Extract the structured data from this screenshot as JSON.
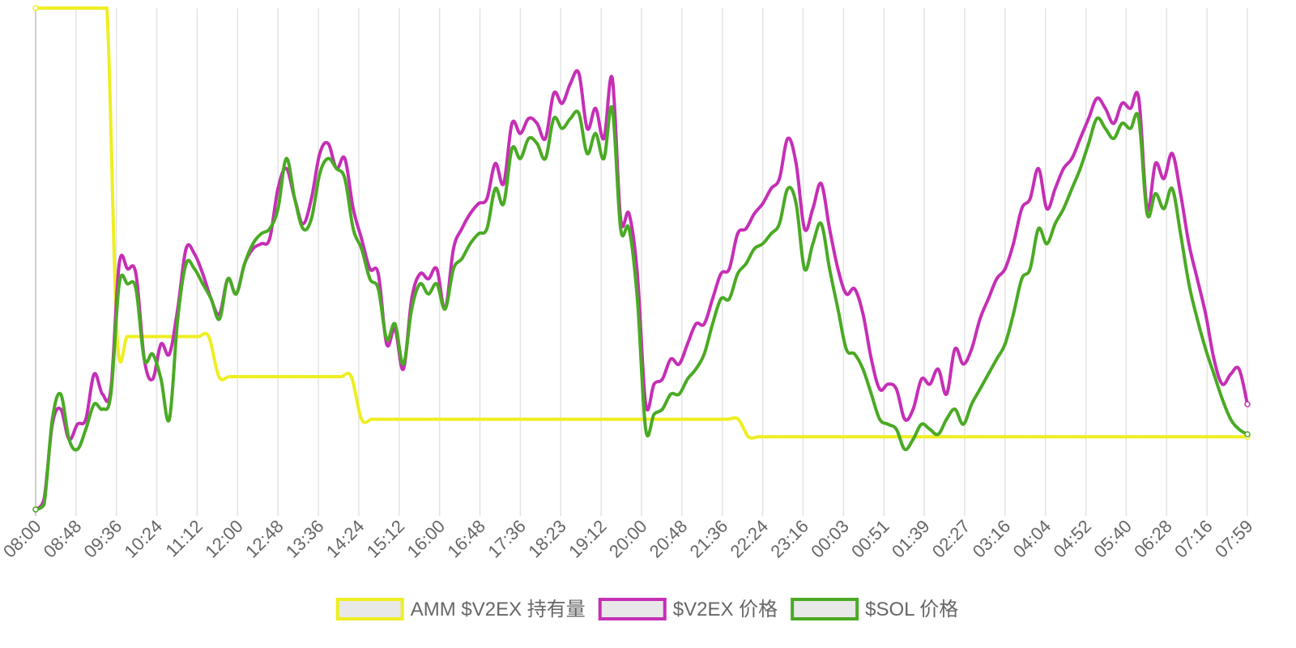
{
  "chart_data": {
    "type": "line",
    "title": "",
    "xlabel": "",
    "ylabel": "",
    "grid": true,
    "legend_position": "bottom-center",
    "x_tick_labels": [
      "08:00",
      "08:48",
      "09:36",
      "10:24",
      "11:12",
      "12:00",
      "12:48",
      "13:36",
      "14:24",
      "15:12",
      "16:00",
      "16:48",
      "17:36",
      "18:23",
      "19:12",
      "20:00",
      "20:48",
      "21:36",
      "22:24",
      "23:16",
      "00:03",
      "00:51",
      "01:39",
      "02:27",
      "03:16",
      "04:04",
      "04:52",
      "05:40",
      "06:28",
      "07:16",
      "07:59"
    ],
    "ylim": [
      0,
      100
    ],
    "series": [
      {
        "name": "AMM $V2EX 持有量",
        "color": "#eeee22",
        "values": [
          100,
          100,
          100,
          100,
          100,
          100,
          100,
          100,
          34.5,
          34.5,
          34.5,
          34.5,
          34.5,
          34.5,
          34.5,
          34.5,
          34.5,
          34.5,
          26.5,
          26.5,
          26.5,
          26.5,
          26.5,
          26.5,
          26.5,
          26.5,
          26.5,
          26.5,
          26.5,
          26.5,
          26.5,
          26.5,
          18,
          18,
          18,
          18,
          18,
          18,
          18,
          18,
          18,
          18,
          18,
          18,
          18,
          18,
          18,
          18,
          18,
          18,
          18,
          18,
          18,
          18,
          18,
          18,
          18,
          18,
          18,
          18,
          18,
          18,
          18,
          18,
          18,
          18,
          18,
          18,
          18,
          18,
          14.5,
          14.5,
          14.5,
          14.5,
          14.5,
          14.5,
          14.5,
          14.5,
          14.5,
          14.5,
          14.5,
          14.5,
          14.5,
          14.5,
          14.5,
          14.5,
          14.5,
          14.5,
          14.5,
          14.5,
          14.5,
          14.5,
          14.5,
          14.5,
          14.5,
          14.5,
          14.5,
          14.5,
          14.5,
          14.5,
          14.5,
          14.5,
          14.5,
          14.5,
          14.5,
          14.5,
          14.5,
          14.5,
          14.5,
          14.5,
          14.5,
          14.5,
          14.5,
          14.5,
          14.5,
          14.5,
          14.5,
          14.5,
          14.5,
          14.5
        ]
      },
      {
        "name": "$V2EX 价格",
        "color": "#c52fb5",
        "values": [
          0,
          2,
          17,
          20,
          14,
          17,
          18,
          27,
          23,
          24,
          49,
          48,
          47,
          30,
          26,
          33,
          31,
          40,
          52,
          51,
          47,
          42,
          39,
          46,
          43,
          49,
          52,
          53,
          54,
          64,
          68,
          62,
          57,
          62,
          71,
          73,
          68,
          70,
          60,
          54,
          48,
          47,
          33,
          36,
          28,
          42,
          47,
          46,
          48,
          40,
          52,
          56,
          59,
          61,
          62,
          69,
          65,
          77,
          75,
          78,
          77,
          74,
          83,
          81,
          85,
          87,
          76,
          80,
          74,
          86,
          58,
          59,
          47,
          21,
          25,
          26,
          30,
          29,
          33,
          37,
          37,
          42,
          47,
          48,
          55,
          56,
          59,
          61,
          64,
          66,
          74,
          69,
          56,
          60,
          65,
          56,
          48,
          43,
          44,
          39,
          30,
          24,
          25,
          24,
          18,
          20,
          26,
          25,
          28,
          23,
          32,
          29,
          32,
          38,
          42,
          46,
          48,
          53,
          60,
          62,
          68,
          60,
          64,
          68,
          70,
          74,
          78,
          82,
          80,
          77,
          81,
          80,
          82,
          60,
          69,
          66,
          71,
          63,
          53,
          46,
          39,
          30,
          25,
          27,
          28,
          21
        ]
      },
      {
        "name": "$SOL 价格",
        "color": "#4aaa24",
        "values": [
          0,
          1,
          18,
          23,
          14,
          12,
          16,
          21,
          20,
          23,
          45,
          45,
          44,
          30,
          31,
          26,
          18,
          38,
          49,
          48,
          45,
          42,
          38,
          46,
          43,
          49,
          53,
          55,
          56,
          60,
          70,
          62,
          56,
          58,
          67,
          70,
          68,
          66,
          56,
          52,
          46,
          44,
          34,
          37,
          29,
          40,
          45,
          43,
          45,
          40,
          48,
          50,
          53,
          55,
          56,
          64,
          61,
          72,
          70,
          74,
          73,
          70,
          78,
          76,
          78,
          79,
          71,
          75,
          70,
          80,
          56,
          56,
          42,
          16,
          19,
          20,
          23,
          23,
          26,
          28,
          31,
          37,
          42,
          42,
          47,
          49,
          52,
          53,
          55,
          57,
          64,
          61,
          48,
          53,
          57,
          48,
          40,
          32,
          31,
          28,
          23,
          18,
          17,
          16,
          12,
          14,
          17,
          16,
          15,
          18,
          20,
          17,
          21,
          24,
          27,
          30,
          33,
          39,
          46,
          48,
          56,
          53,
          57,
          60,
          64,
          68,
          73,
          78,
          76,
          74,
          77,
          76,
          78,
          59,
          63,
          60,
          64,
          55,
          45,
          38,
          32,
          27,
          22,
          18,
          16,
          15
        ]
      }
    ]
  }
}
